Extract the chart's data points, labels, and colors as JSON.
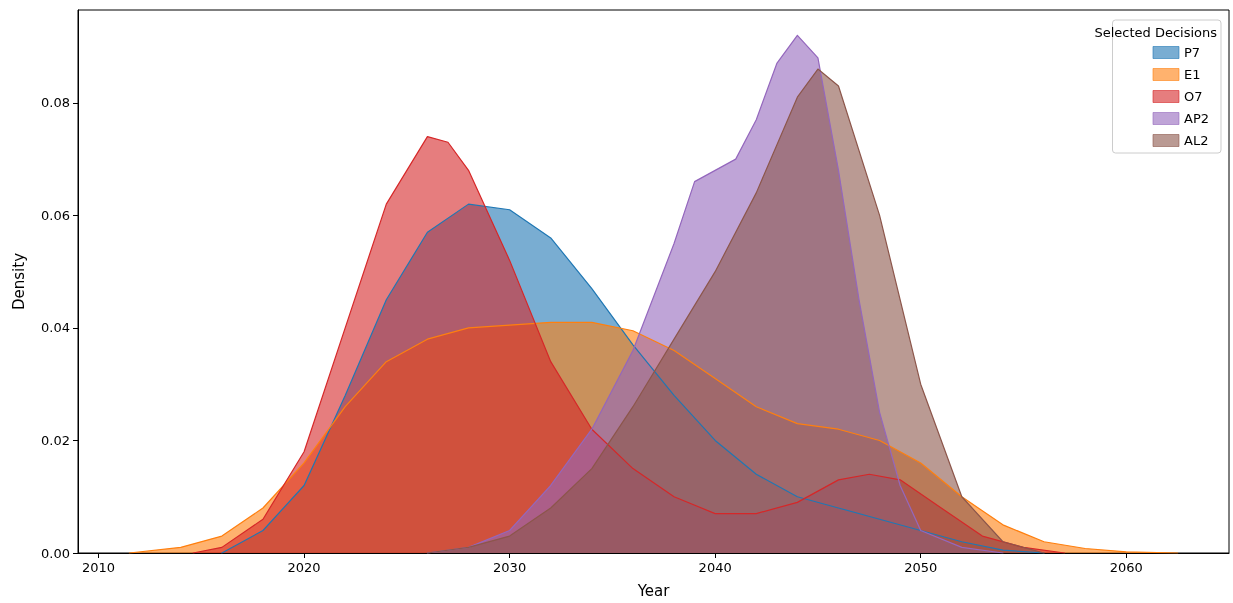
{
  "chart_data": {
    "type": "area",
    "xlabel": "Year",
    "ylabel": "Density",
    "legend_title": "Selected Decisions",
    "legend": "top right",
    "grid": false,
    "marker": "none",
    "line_style": "solid",
    "xlim": [
      2009,
      2065
    ],
    "xticks": [
      2010,
      2020,
      2030,
      2040,
      2050,
      2060
    ],
    "ylim": [
      0,
      0.0965
    ],
    "yticks": [
      {
        "value": 0,
        "label": "0.00"
      },
      {
        "value": 0.02,
        "label": "0.02"
      },
      {
        "value": 0.04,
        "label": "0.04"
      },
      {
        "value": 0.06,
        "label": "0.06"
      },
      {
        "value": 0.08,
        "label": "0.08"
      }
    ],
    "series": [
      {
        "name": "P7",
        "color": "#1f77b4",
        "x": [
          2016,
          2018,
          2020,
          2022,
          2024,
          2026,
          2028,
          2030,
          2032,
          2034,
          2036,
          2038,
          2040,
          2042,
          2044,
          2046,
          2048,
          2050,
          2052,
          2054,
          2056
        ],
        "values": [
          0,
          0.004,
          0.012,
          0.028,
          0.045,
          0.057,
          0.062,
          0.061,
          0.056,
          0.047,
          0.037,
          0.028,
          0.02,
          0.014,
          0.01,
          0.008,
          0.006,
          0.004,
          0.002,
          0.0005,
          0
        ]
      },
      {
        "name": "E1",
        "color": "#ff7f0e",
        "x": [
          2011.5,
          2014,
          2016,
          2018,
          2020,
          2022,
          2024,
          2026,
          2028,
          2030,
          2032,
          2034,
          2036,
          2038,
          2040,
          2042,
          2044,
          2046,
          2048,
          2050,
          2052,
          2054,
          2056,
          2058,
          2060,
          2062.5
        ],
        "values": [
          0,
          0.001,
          0.003,
          0.008,
          0.016,
          0.026,
          0.034,
          0.038,
          0.04,
          0.0405,
          0.041,
          0.041,
          0.0395,
          0.036,
          0.031,
          0.026,
          0.023,
          0.022,
          0.02,
          0.016,
          0.01,
          0.005,
          0.002,
          0.0008,
          0.0002,
          0
        ]
      },
      {
        "name": "O7",
        "color": "#d62728",
        "x": [
          2014.6,
          2016,
          2018,
          2020,
          2022,
          2024,
          2026,
          2027,
          2028,
          2030,
          2032,
          2034,
          2036,
          2038,
          2040,
          2042,
          2044,
          2046,
          2047.5,
          2049,
          2051,
          2053,
          2055,
          2057
        ],
        "values": [
          0,
          0.001,
          0.006,
          0.018,
          0.04,
          0.062,
          0.074,
          0.073,
          0.068,
          0.052,
          0.034,
          0.022,
          0.015,
          0.01,
          0.007,
          0.007,
          0.009,
          0.013,
          0.014,
          0.013,
          0.008,
          0.003,
          0.001,
          0
        ]
      },
      {
        "name": "AP2",
        "color": "#9467bd",
        "x": [
          2026,
          2028,
          2030,
          2032,
          2034,
          2036,
          2038,
          2039,
          2040,
          2041,
          2042,
          2043,
          2044,
          2045,
          2046,
          2047,
          2048,
          2049,
          2050,
          2052,
          2054
        ],
        "values": [
          0,
          0.001,
          0.004,
          0.012,
          0.022,
          0.036,
          0.055,
          0.066,
          0.068,
          0.07,
          0.077,
          0.087,
          0.092,
          0.088,
          0.068,
          0.045,
          0.025,
          0.012,
          0.004,
          0.001,
          0
        ]
      },
      {
        "name": "AL2",
        "color": "#8c564b",
        "x": [
          2026,
          2028,
          2030,
          2032,
          2034,
          2036,
          2038,
          2040,
          2042,
          2044,
          2045,
          2046,
          2048,
          2050,
          2052,
          2054,
          2056
        ],
        "values": [
          0,
          0.001,
          0.003,
          0.008,
          0.015,
          0.026,
          0.038,
          0.05,
          0.064,
          0.081,
          0.086,
          0.083,
          0.06,
          0.03,
          0.01,
          0.002,
          0
        ]
      }
    ]
  }
}
